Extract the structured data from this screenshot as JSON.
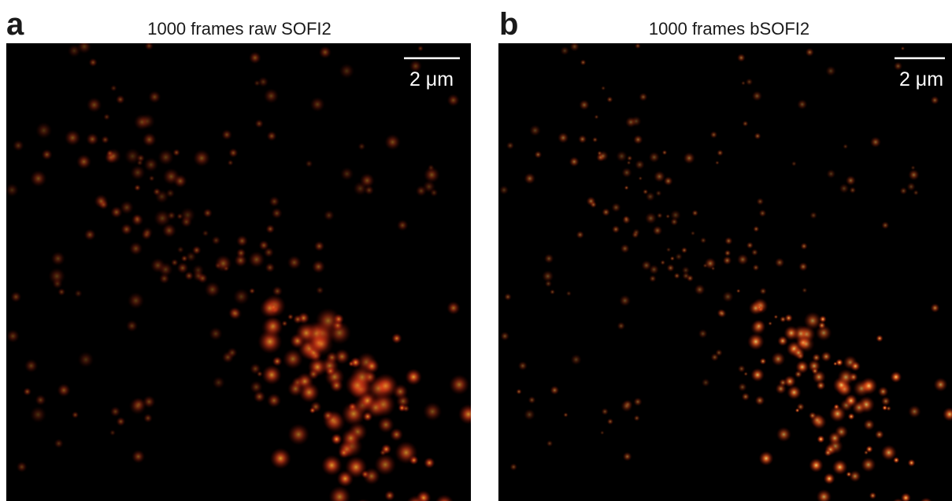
{
  "panels": [
    {
      "label": "a",
      "title": "1000 frames raw SOFI2",
      "scale_bar": "2 μm"
    },
    {
      "label": "b",
      "title": "1000 frames bSOFI2",
      "scale_bar": "2 μm"
    }
  ]
}
